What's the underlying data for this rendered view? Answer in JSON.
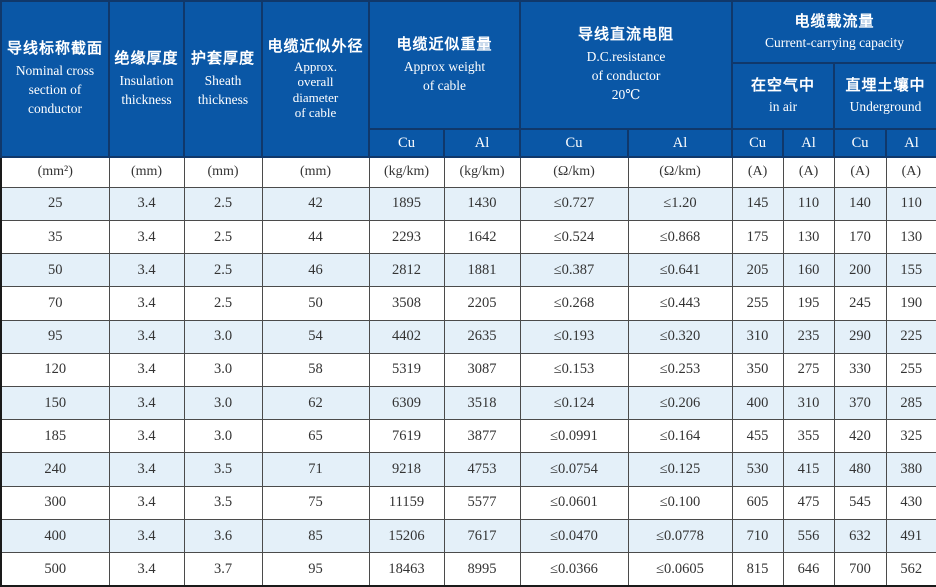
{
  "colors": {
    "header_bg": "#0a57a6",
    "header_border": "#10386b",
    "row_alt_bg": "#e4f0f9",
    "grid_line": "#4b4b4b",
    "outer_border": "#1a1a1a",
    "text_color": "#333333",
    "header_text": "#ffffff"
  },
  "header": {
    "nominal": {
      "zh": "导线标称截面",
      "en": "Nominal  cross\nsection of\nconductor"
    },
    "insulation": {
      "zh": "绝缘厚度",
      "en": "Insulation\nthickness"
    },
    "sheath": {
      "zh": "护套厚度",
      "en": "Sheath\nthickness"
    },
    "diameter": {
      "zh": "电缆近似外径",
      "en": "Approx.\noverall\ndiameter\nof cable"
    },
    "weight": {
      "zh": "电缆近似重量",
      "en": "Approx weight\nof cable"
    },
    "resistance": {
      "zh": "导线直流电阻",
      "en": "D.C.resistance\nof conductor\n20℃"
    },
    "capacity": {
      "zh": "电缆载流量",
      "en": "Current-carrying capacity"
    },
    "in_air": {
      "zh": "在空气中",
      "en": "in air"
    },
    "underground": {
      "zh": "直埋土壤中",
      "en": "Underground"
    },
    "cu": "Cu",
    "al": "Al"
  },
  "units": [
    "(mm²)",
    "(mm)",
    "(mm)",
    "(mm)",
    "(kg/km)",
    "(kg/km)",
    "(Ω/km)",
    "(Ω/km)",
    "(A)",
    "(A)",
    "(A)",
    "(A)"
  ],
  "rows": [
    [
      "25",
      "3.4",
      "2.5",
      "42",
      "1895",
      "1430",
      "≤0.727",
      "≤1.20",
      "145",
      "110",
      "140",
      "110"
    ],
    [
      "35",
      "3.4",
      "2.5",
      "44",
      "2293",
      "1642",
      "≤0.524",
      "≤0.868",
      "175",
      "130",
      "170",
      "130"
    ],
    [
      "50",
      "3.4",
      "2.5",
      "46",
      "2812",
      "1881",
      "≤0.387",
      "≤0.641",
      "205",
      "160",
      "200",
      "155"
    ],
    [
      "70",
      "3.4",
      "2.5",
      "50",
      "3508",
      "2205",
      "≤0.268",
      "≤0.443",
      "255",
      "195",
      "245",
      "190"
    ],
    [
      "95",
      "3.4",
      "3.0",
      "54",
      "4402",
      "2635",
      "≤0.193",
      "≤0.320",
      "310",
      "235",
      "290",
      "225"
    ],
    [
      "120",
      "3.4",
      "3.0",
      "58",
      "5319",
      "3087",
      "≤0.153",
      "≤0.253",
      "350",
      "275",
      "330",
      "255"
    ],
    [
      "150",
      "3.4",
      "3.0",
      "62",
      "6309",
      "3518",
      "≤0.124",
      "≤0.206",
      "400",
      "310",
      "370",
      "285"
    ],
    [
      "185",
      "3.4",
      "3.0",
      "65",
      "7619",
      "3877",
      "≤0.0991",
      "≤0.164",
      "455",
      "355",
      "420",
      "325"
    ],
    [
      "240",
      "3.4",
      "3.5",
      "71",
      "9218",
      "4753",
      "≤0.0754",
      "≤0.125",
      "530",
      "415",
      "480",
      "380"
    ],
    [
      "300",
      "3.4",
      "3.5",
      "75",
      "11159",
      "5577",
      "≤0.0601",
      "≤0.100",
      "605",
      "475",
      "545",
      "430"
    ],
    [
      "400",
      "3.4",
      "3.6",
      "85",
      "15206",
      "7617",
      "≤0.0470",
      "≤0.0778",
      "710",
      "556",
      "632",
      "491"
    ],
    [
      "500",
      "3.4",
      "3.7",
      "95",
      "18463",
      "8995",
      "≤0.0366",
      "≤0.0605",
      "815",
      "646",
      "700",
      "562"
    ]
  ]
}
